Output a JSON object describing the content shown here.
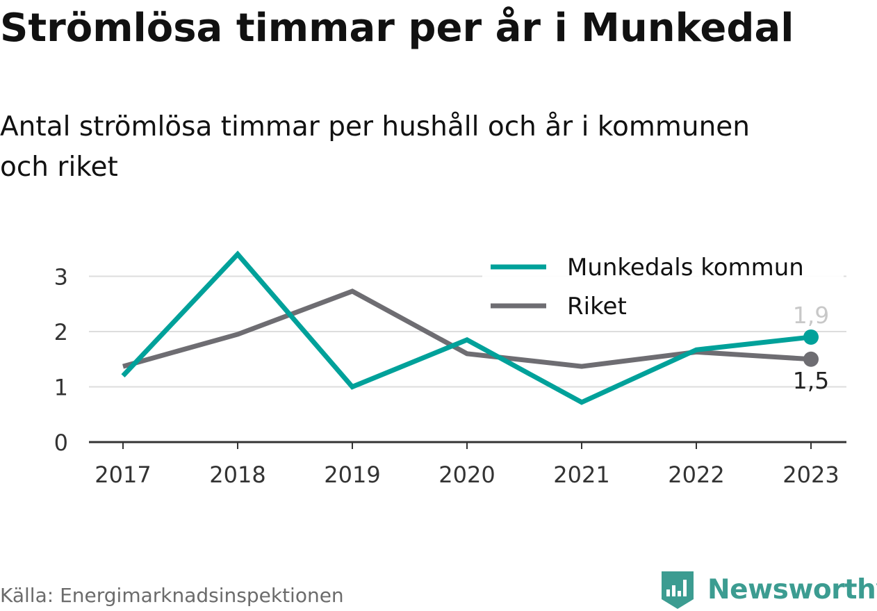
{
  "header": {
    "title": "Strömlösa timmar per år i Munkedal",
    "subtitle_line1": "Antal strömlösa timmar per hushåll och år i kommunen",
    "subtitle_line2": "och riket"
  },
  "footer": {
    "source": "Källa: Energimarknadsinspektionen",
    "logo_text": "Newsworthy",
    "logo_icon": "bar-chart-shield-icon"
  },
  "colors": {
    "munkedal": "#00a19a",
    "riket": "#6e6d72",
    "grid": "#dddddd",
    "axis": "#333333",
    "brand": "#3c9c91"
  },
  "chart_data": {
    "type": "line",
    "categories": [
      "2017",
      "2018",
      "2019",
      "2020",
      "2021",
      "2022",
      "2023"
    ],
    "series": [
      {
        "name": "Munkedals kommun",
        "color": "#00a19a",
        "values": [
          1.2,
          3.4,
          1.0,
          1.85,
          0.72,
          1.67,
          1.9
        ],
        "end_label": "1,9"
      },
      {
        "name": "Riket",
        "color": "#6e6d72",
        "values": [
          1.37,
          1.95,
          2.73,
          1.6,
          1.37,
          1.63,
          1.5
        ],
        "end_label": "1,5"
      }
    ],
    "yticks": [
      "0",
      "1",
      "2",
      "3"
    ],
    "ylim": [
      0,
      3.5
    ],
    "grid": true,
    "legend_position": "top-right",
    "xlabel": "",
    "ylabel": ""
  }
}
